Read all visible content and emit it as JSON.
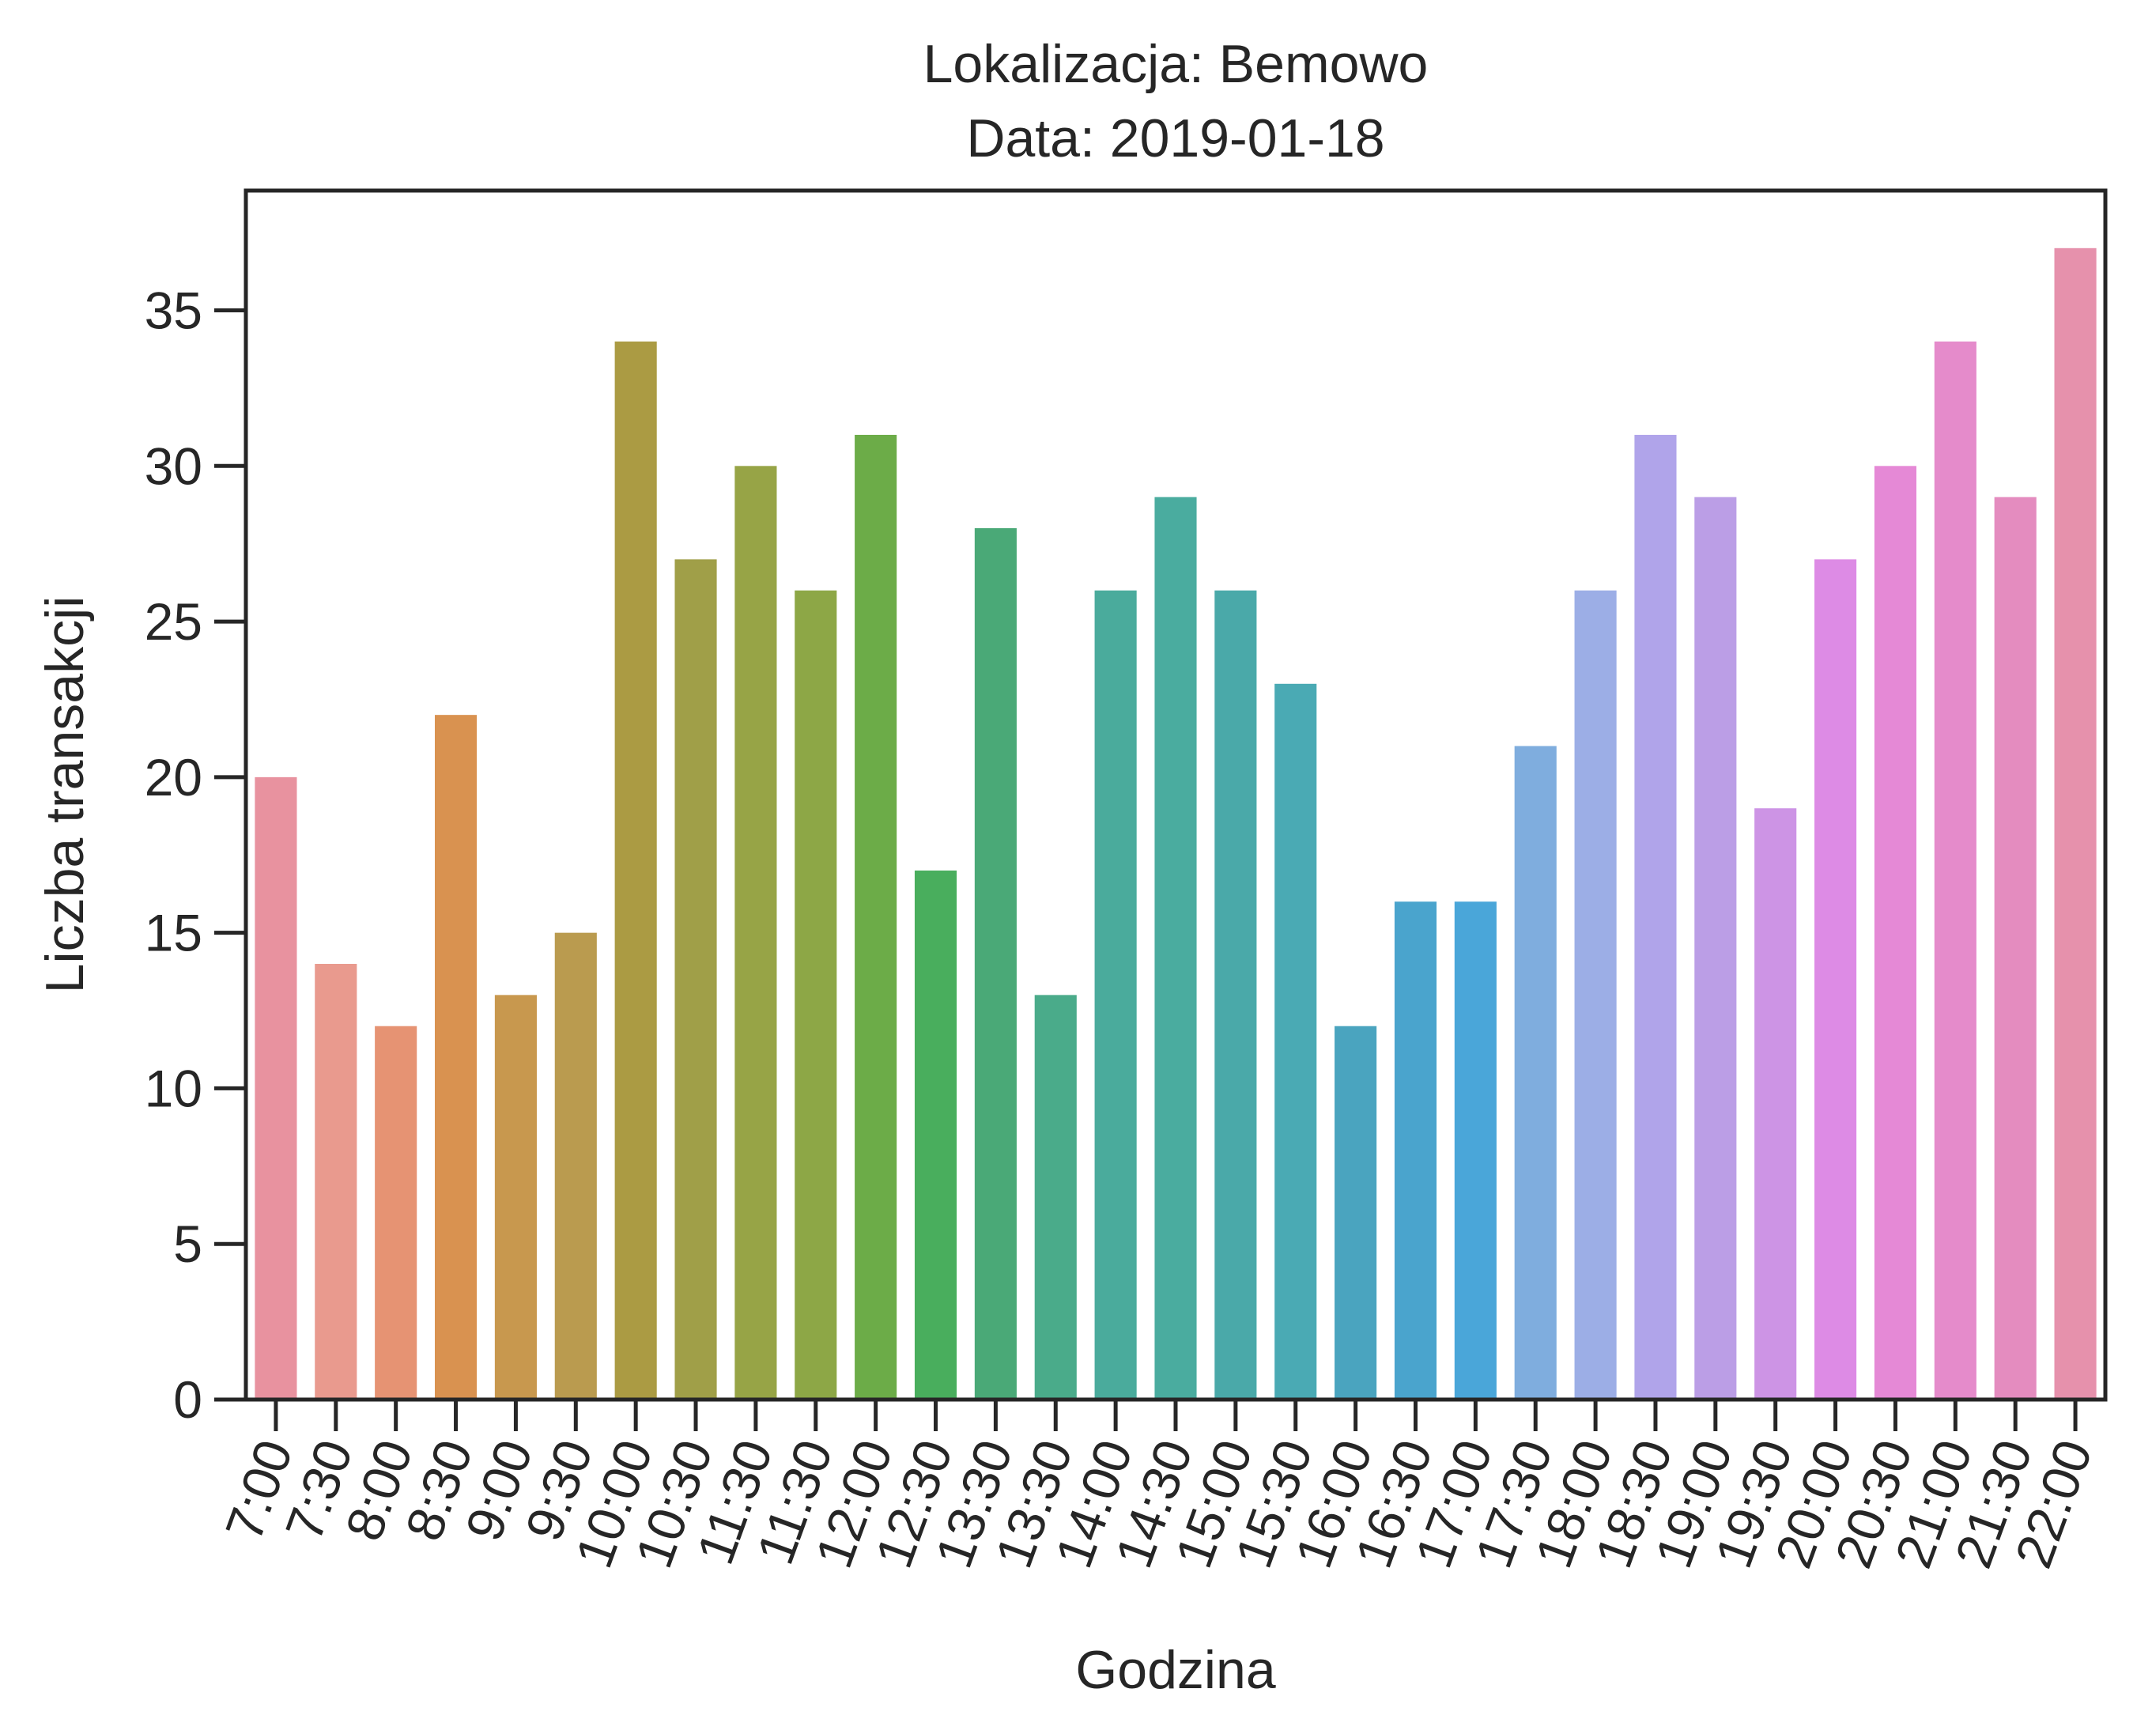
{
  "chart_data": {
    "type": "bar",
    "title_line1": "Lokalizacja: Bemowo",
    "title_line2": "Data: 2019-01-18",
    "xlabel": "Godzina",
    "ylabel": "Liczba transakcji",
    "ylim": [
      0,
      38.85
    ],
    "yticks": [
      "0",
      "5",
      "10",
      "15",
      "20",
      "25",
      "30",
      "35"
    ],
    "ytick_values": [
      0,
      5,
      10,
      15,
      20,
      25,
      30,
      35
    ],
    "grid": false,
    "categories": [
      "7:00",
      "7:30",
      "8:00",
      "8:30",
      "9:00",
      "9:30",
      "10:00",
      "10:30",
      "11:30",
      "11:30",
      "12:00",
      "12:30",
      "13:30",
      "13:30",
      "14:00",
      "14:30",
      "15:00",
      "15:30",
      "16:00",
      "16:30",
      "17:00",
      "17:30",
      "18:00",
      "18:30",
      "19:00",
      "19:30",
      "20:00",
      "20:30",
      "21:00",
      "21:30",
      "22:00"
    ],
    "values": [
      20,
      14,
      12,
      22,
      13,
      15,
      34,
      27,
      30,
      26,
      31,
      17,
      28,
      13,
      26,
      29,
      26,
      23,
      12,
      16,
      16,
      21,
      26,
      31,
      29,
      19,
      27,
      30,
      34,
      29,
      37
    ],
    "colors": [
      "#e8929f",
      "#e99a8e",
      "#e69373",
      "#d99250",
      "#c8984e",
      "#ba9b4f",
      "#ab9b43",
      "#a09f48",
      "#97a446",
      "#8da746",
      "#6cac48",
      "#49ae5d",
      "#4aa977",
      "#4aab8a",
      "#4aab9c",
      "#4aac9f",
      "#4aa9a9",
      "#4aaab4",
      "#4aa4bf",
      "#4aa4cd",
      "#4aa6d9",
      "#7fadde",
      "#9caee6",
      "#b0a4ea",
      "#bb9ee6",
      "#cd94e5",
      "#dd8be5",
      "#e589d6",
      "#e58bcb",
      "#e48cbf",
      "#e691ac"
    ]
  }
}
